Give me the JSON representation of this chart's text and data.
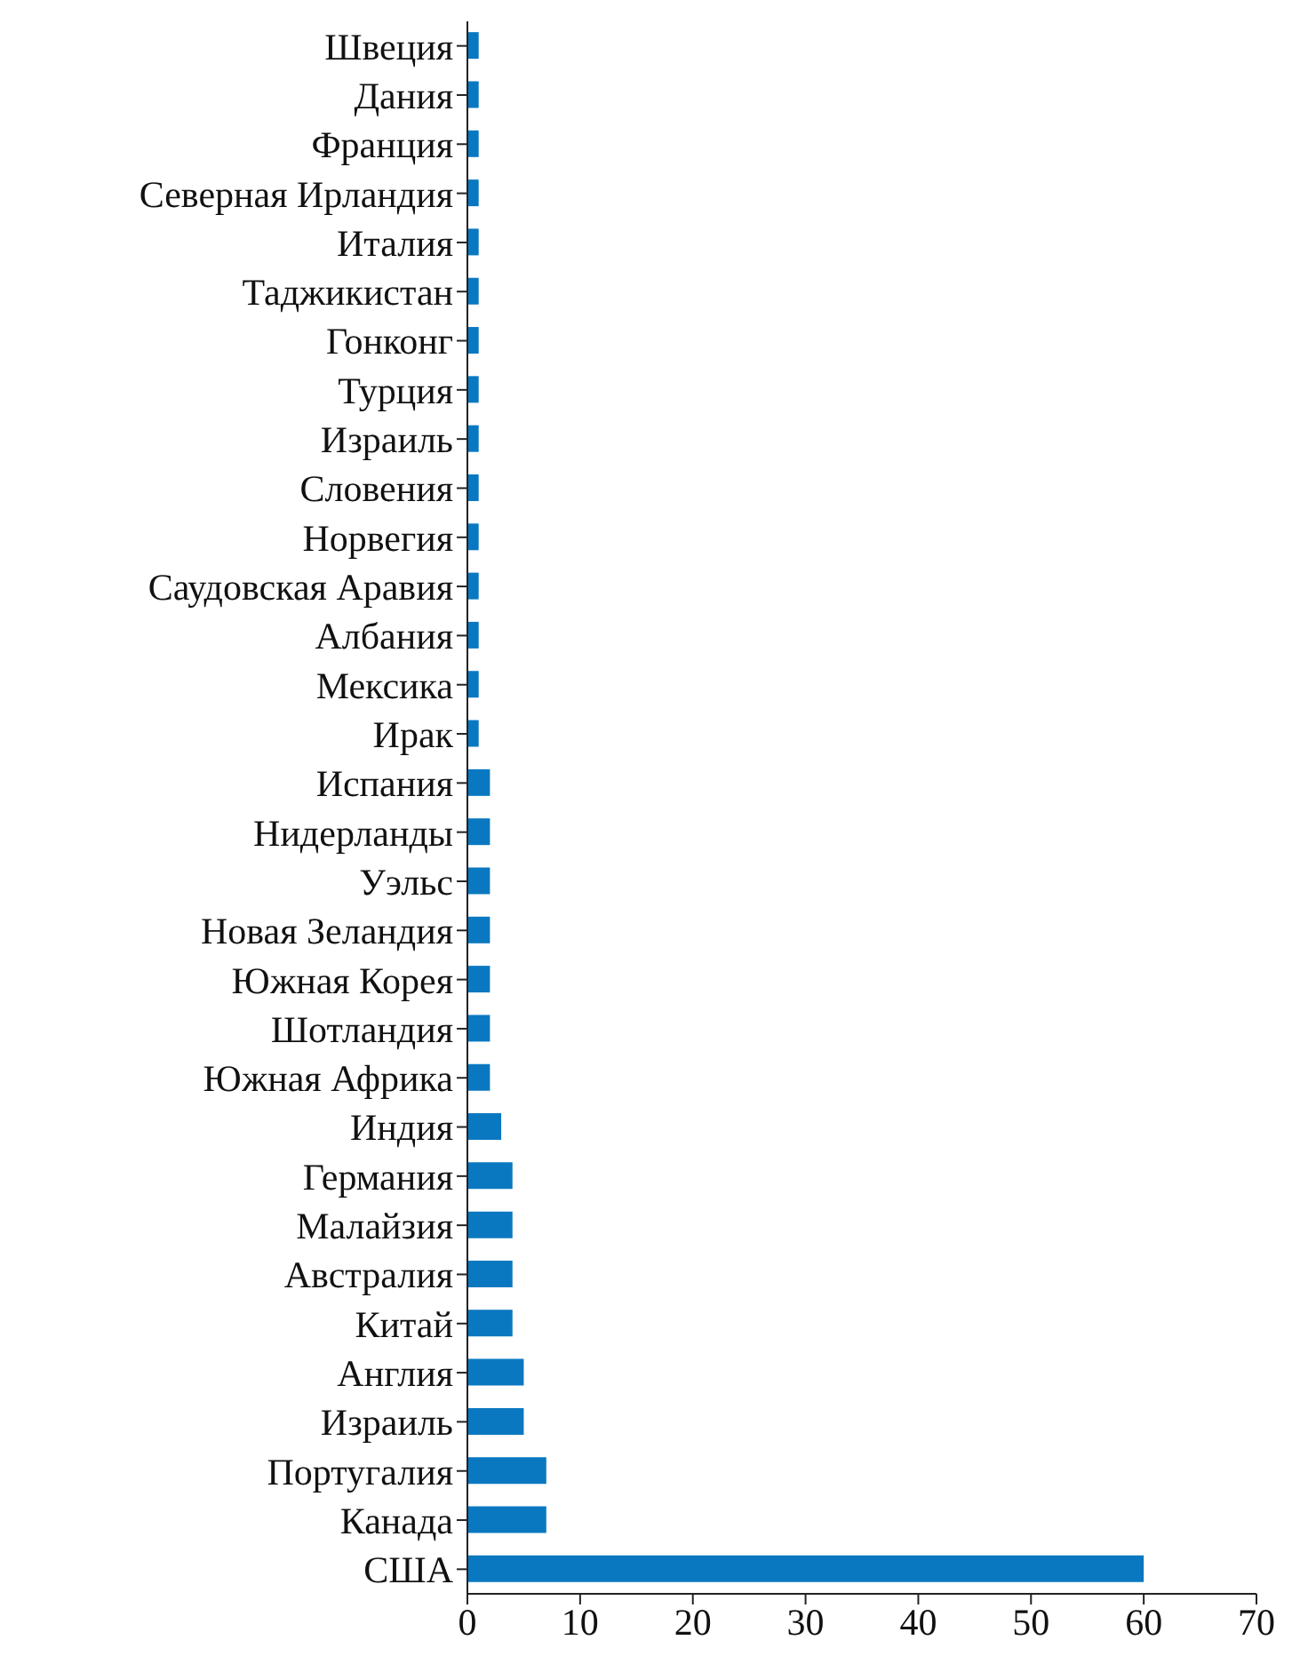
{
  "chart_data": {
    "type": "bar",
    "orientation": "horizontal",
    "categories": [
      "Швеция",
      "Дания",
      "Франция",
      "Северная Ирландия",
      "Италия",
      "Таджикистан",
      "Гонконг",
      "Турция",
      "Израиль",
      "Словения",
      "Норвегия",
      "Саудовская Аравия",
      "Албания",
      "Мексика",
      "Ирак",
      "Испания",
      "Нидерланды",
      "Уэльс",
      "Новая Зеландия",
      "Южная Корея",
      "Шотландия",
      "Южная Африка",
      "Индия",
      "Германия",
      "Малайзия",
      "Австралия",
      "Китай",
      "Англия",
      "Израиль",
      "Португалия",
      "Канада",
      "США"
    ],
    "values": [
      1,
      1,
      1,
      1,
      1,
      1,
      1,
      1,
      1,
      1,
      1,
      1,
      1,
      1,
      1,
      2,
      2,
      2,
      2,
      2,
      2,
      2,
      3,
      4,
      4,
      4,
      4,
      5,
      5,
      7,
      7,
      60
    ],
    "color": "#0a78c0",
    "xlim": [
      0,
      70
    ],
    "xticks": [
      0,
      10,
      20,
      30,
      40,
      50,
      60,
      70
    ],
    "grid": false
  }
}
